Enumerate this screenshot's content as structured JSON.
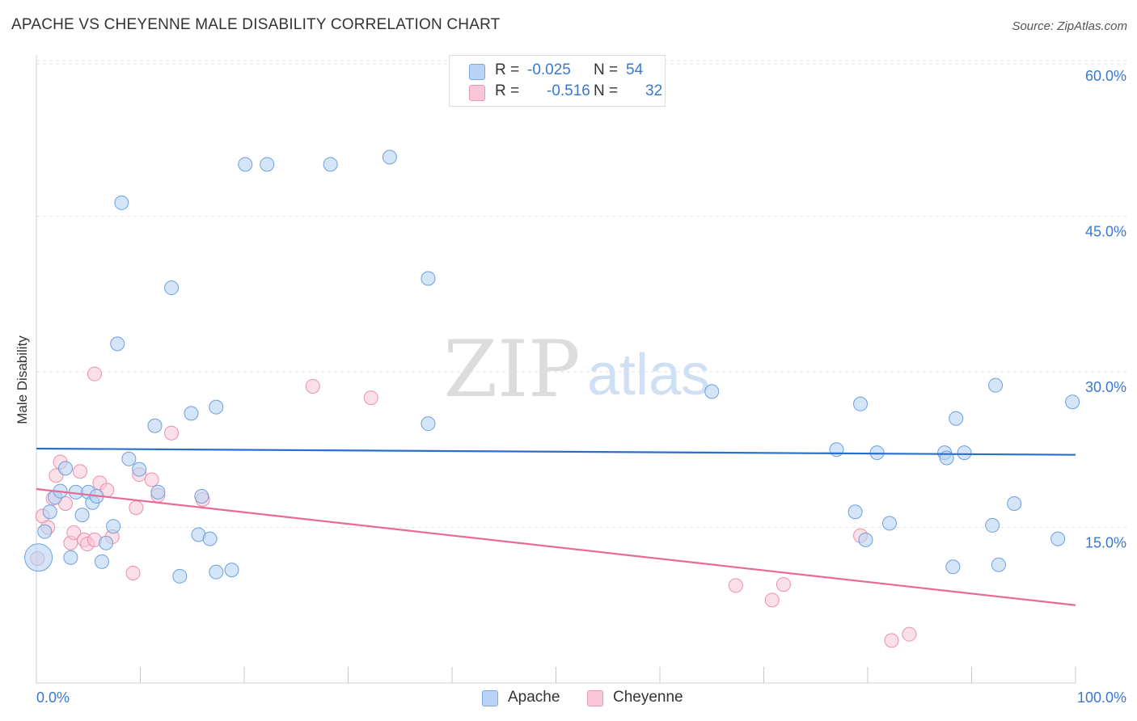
{
  "header": {
    "title": "APACHE VS CHEYENNE MALE DISABILITY CORRELATION CHART",
    "source": "Source: ZipAtlas.com"
  },
  "watermark": {
    "zip": "ZIP",
    "atlas": "atlas"
  },
  "legend": {
    "rows": [
      {
        "r_label": "R =",
        "r_value": "-0.025",
        "n_label": "N =",
        "n_value": "54",
        "color": "#b8d3f4",
        "border": "#7aaae6"
      },
      {
        "r_label": "R =",
        "r_value": "-0.516",
        "n_label": "N =",
        "n_value": "32",
        "color": "#f9c6d5",
        "border": "#ee98b3"
      }
    ]
  },
  "bottom_legend": [
    {
      "label": "Apache",
      "color": "#b8d3f4",
      "border": "#7aaae6"
    },
    {
      "label": "Cheyenne",
      "color": "#f9c6d5",
      "border": "#ee98b3"
    }
  ],
  "chart_data": {
    "type": "scatter",
    "title": "APACHE VS CHEYENNE MALE DISABILITY CORRELATION CHART",
    "xlabel": "",
    "ylabel": "Male Disability",
    "xlim": [
      0,
      100
    ],
    "ylim": [
      0,
      60
    ],
    "x_tick_labels": [
      "0.0%",
      "100.0%"
    ],
    "y_tick_labels": [
      "15.0%",
      "30.0%",
      "45.0%",
      "60.0%"
    ],
    "y_ticks": [
      15,
      30,
      45,
      60
    ],
    "grid": true,
    "legend_position": "top-center",
    "colors": {
      "apache_fill": "#b8d3f4",
      "apache_stroke": "#6f9fdc",
      "apache_line": "#2a6fcc",
      "cheyenne_fill": "#f9c6d5",
      "cheyenne_stroke": "#ea8fae",
      "cheyenne_line": "#e8699a",
      "tick_label": "#3a78d0"
    },
    "series": [
      {
        "name": "Apache",
        "r": -0.025,
        "n": 54,
        "trend": {
          "x": [
            0,
            100
          ],
          "y": [
            22.6,
            22.0
          ]
        },
        "points": [
          [
            0.2,
            12.1
          ],
          [
            0.8,
            14.6
          ],
          [
            1.3,
            16.5
          ],
          [
            1.8,
            17.9
          ],
          [
            2.3,
            18.5
          ],
          [
            2.8,
            20.7
          ],
          [
            3.3,
            12.1
          ],
          [
            3.8,
            18.4
          ],
          [
            4.4,
            16.2
          ],
          [
            5.0,
            18.4
          ],
          [
            5.4,
            17.4
          ],
          [
            5.8,
            18.0
          ],
          [
            6.3,
            11.7
          ],
          [
            6.7,
            13.5
          ],
          [
            7.4,
            15.1
          ],
          [
            7.8,
            32.7
          ],
          [
            8.2,
            46.3
          ],
          [
            8.9,
            21.6
          ],
          [
            9.9,
            20.6
          ],
          [
            11.4,
            24.8
          ],
          [
            11.7,
            18.4
          ],
          [
            13.0,
            38.1
          ],
          [
            13.8,
            10.3
          ],
          [
            14.9,
            26.0
          ],
          [
            15.6,
            14.3
          ],
          [
            15.9,
            18.0
          ],
          [
            16.7,
            13.9
          ],
          [
            17.3,
            26.6
          ],
          [
            17.3,
            10.7
          ],
          [
            18.8,
            10.9
          ],
          [
            20.1,
            50.0
          ],
          [
            22.2,
            50.0
          ],
          [
            28.3,
            50.0
          ],
          [
            34.0,
            50.7
          ],
          [
            37.7,
            25.0
          ],
          [
            37.7,
            39.0
          ],
          [
            65.0,
            28.1
          ],
          [
            77.0,
            22.5
          ],
          [
            78.8,
            16.5
          ],
          [
            79.3,
            26.9
          ],
          [
            79.8,
            13.8
          ],
          [
            80.9,
            22.2
          ],
          [
            82.1,
            15.4
          ],
          [
            87.4,
            22.2
          ],
          [
            87.6,
            21.7
          ],
          [
            89.3,
            22.2
          ],
          [
            88.2,
            11.2
          ],
          [
            88.5,
            25.5
          ],
          [
            92.0,
            15.2
          ],
          [
            92.3,
            28.7
          ],
          [
            92.6,
            11.4
          ],
          [
            94.1,
            17.3
          ],
          [
            98.3,
            13.9
          ],
          [
            99.7,
            27.1
          ]
        ]
      },
      {
        "name": "Cheyenne",
        "r": -0.516,
        "n": 32,
        "trend": {
          "x": [
            0,
            100
          ],
          "y": [
            18.7,
            7.5
          ]
        },
        "points": [
          [
            0.1,
            12.0
          ],
          [
            0.6,
            16.1
          ],
          [
            1.1,
            15.0
          ],
          [
            1.6,
            17.8
          ],
          [
            1.9,
            20.0
          ],
          [
            2.3,
            21.3
          ],
          [
            2.8,
            17.3
          ],
          [
            3.3,
            13.5
          ],
          [
            3.6,
            14.5
          ],
          [
            4.2,
            20.4
          ],
          [
            4.6,
            13.8
          ],
          [
            4.9,
            13.4
          ],
          [
            5.6,
            13.8
          ],
          [
            5.6,
            29.8
          ],
          [
            6.1,
            19.3
          ],
          [
            6.8,
            18.6
          ],
          [
            7.3,
            14.1
          ],
          [
            9.3,
            10.6
          ],
          [
            9.6,
            16.9
          ],
          [
            9.9,
            20.1
          ],
          [
            11.1,
            19.6
          ],
          [
            11.7,
            18.1
          ],
          [
            13.0,
            24.1
          ],
          [
            16.0,
            17.7
          ],
          [
            26.6,
            28.6
          ],
          [
            32.2,
            27.5
          ],
          [
            67.3,
            9.4
          ],
          [
            70.8,
            8.0
          ],
          [
            71.9,
            9.5
          ],
          [
            79.3,
            14.2
          ],
          [
            82.3,
            4.1
          ],
          [
            84.0,
            4.7
          ]
        ]
      }
    ]
  }
}
